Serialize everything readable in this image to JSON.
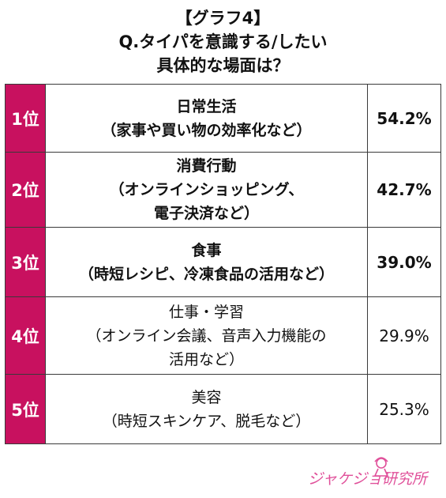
{
  "title_lines": [
    "【グラフ4】",
    "Q.タイパを意識する/したい",
    "具体的な場面は？"
  ],
  "rows": [
    {
      "rank": "1位",
      "lines": [
        "日常生活",
        "（家事や買い物の効率化など）"
      ],
      "percent": "54.2%"
    },
    {
      "rank": "2位",
      "lines": [
        "消費行動",
        "（オンラインショッピング、",
        "電子決済など）"
      ],
      "percent": "42.7%"
    },
    {
      "rank": "3位",
      "lines": [
        "食事",
        "（時短レシピ、冷凍食品の活用など）"
      ],
      "percent": "39.0%"
    },
    {
      "rank": "4位",
      "lines": [
        "仕事・学習",
        "（オンライン会議、音声入力機能の",
        "活用など）"
      ],
      "percent": "29.9%"
    },
    {
      "rank": "5位",
      "lines": [
        "美容",
        "（時短スキンケア、脱毛など）"
      ],
      "percent": "25.3%"
    }
  ],
  "logo_text": "ジャケジョ研究所",
  "colors": {
    "rank_bg": "#c8115f",
    "logo": "#e0509a"
  },
  "chart_data": {
    "type": "table",
    "title": "【グラフ4】 Q.タイパを意識する/したい 具体的な場面は？",
    "categories": [
      "日常生活（家事や買い物の効率化など）",
      "消費行動（オンラインショッピング、電子決済など）",
      "食事（時短レシピ、冷凍食品の活用など）",
      "仕事・学習（オンライン会議、音声入力機能の活用など）",
      "美容（時短スキンケア、脱毛など）"
    ],
    "values": [
      54.2,
      42.7,
      39.0,
      29.9,
      25.3
    ],
    "unit": "%"
  }
}
